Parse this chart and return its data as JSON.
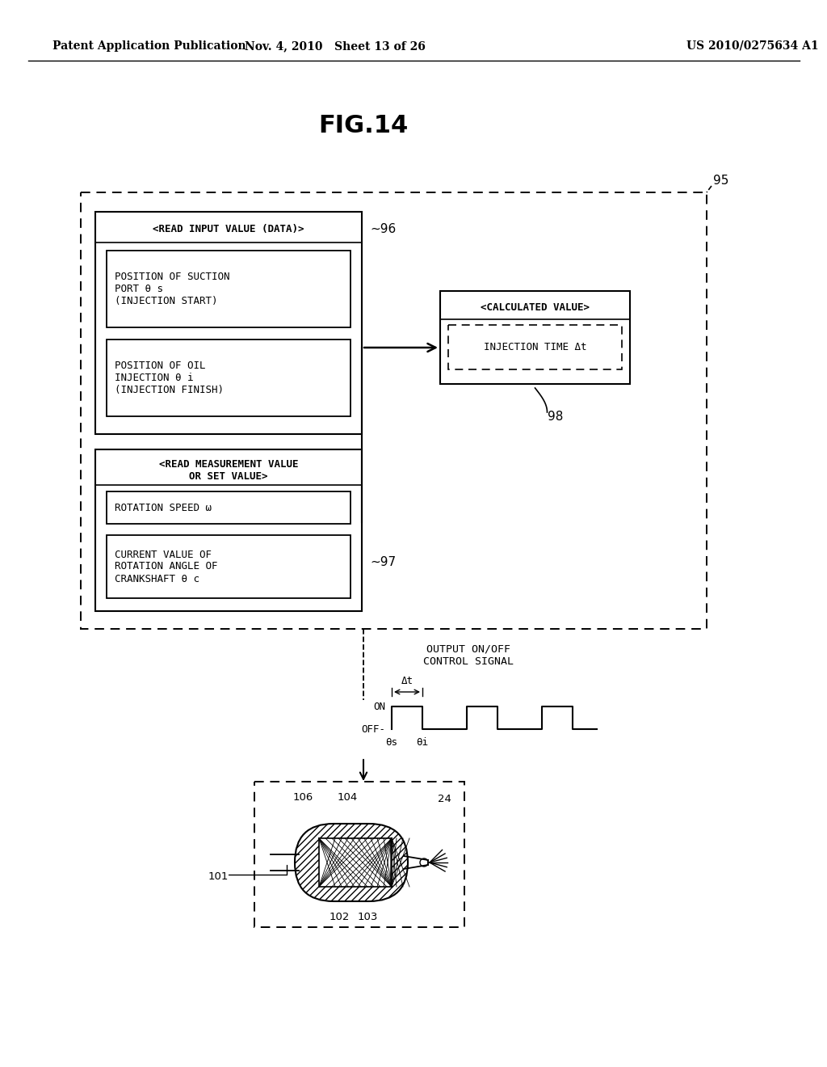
{
  "title": "FIG.14",
  "header_left": "Patent Application Publication",
  "header_mid": "Nov. 4, 2010   Sheet 13 of 26",
  "header_right": "US 2010/0275634 A1",
  "bg_color": "#ffffff",
  "fig_num": "95",
  "label_96": "96",
  "label_97": "97",
  "label_98": "98",
  "box1_title": "<READ INPUT VALUE (DATA)>",
  "box1a_text": "POSITION OF SUCTION\nPORT θ s\n(INJECTION START)",
  "box1b_text": "POSITION OF OIL\nINJECTION θ i\n(INJECTION FINISH)",
  "box2_title": "<READ MEASUREMENT VALUE\nOR SET VALUE>",
  "box2a_text": "ROTATION SPEED ω",
  "box2b_text": "CURRENT VALUE OF\nROTATION ANGLE OF\nCRANKSHAFT θ c",
  "calc_title": "<CALCULATED VALUE>",
  "calc_body": "INJECTION TIME Δt",
  "signal_label": "OUTPUT ON/OFF\nCONTROL SIGNAL",
  "on_label": "ON",
  "off_label": "OFF-",
  "theta_s": "θs",
  "theta_i": "θi",
  "delta_t": "Δt",
  "num_101": "101",
  "num_102": "102",
  "num_103": "103",
  "num_104": "104",
  "num_106": "106",
  "num_24": "24"
}
